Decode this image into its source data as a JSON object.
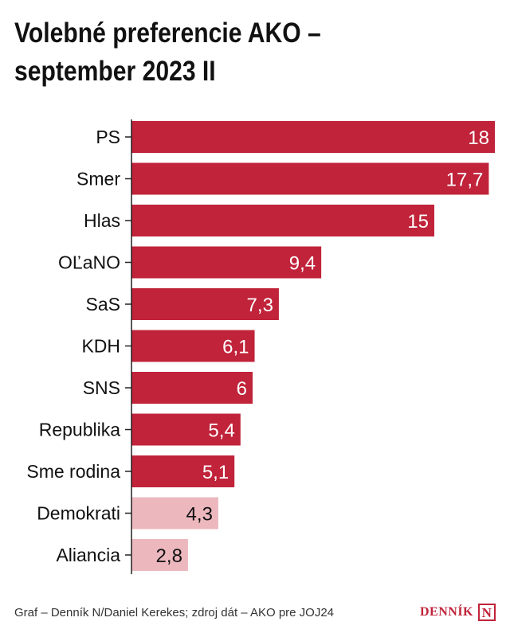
{
  "title_line1": "Volebné preferencie AKO –",
  "title_line2": "september 2023 II",
  "source": "Graf – Denník N/Daniel Kerekes; zdroj dát – AKO pre JOJ24",
  "logo": {
    "text": "DENNÍK",
    "mark": "N"
  },
  "colors": {
    "primary": "#c0233a",
    "light": "#ecb8be",
    "axis": "#222222"
  },
  "chart_data": {
    "type": "bar",
    "orientation": "horizontal",
    "categories": [
      "PS",
      "Smer",
      "Hlas",
      "OĽaNO",
      "SaS",
      "KDH",
      "SNS",
      "Republika",
      "Sme rodina",
      "Demokrati",
      "Aliancia"
    ],
    "values": [
      18,
      17.7,
      15,
      9.4,
      7.3,
      6.1,
      6,
      5.4,
      5.1,
      4.3,
      2.8
    ],
    "labels": [
      "18",
      "17,7",
      "15",
      "9,4",
      "7,3",
      "6,1",
      "6",
      "5,4",
      "5,1",
      "4,3",
      "2,8"
    ],
    "highlight": [
      true,
      true,
      true,
      true,
      true,
      true,
      true,
      true,
      true,
      false,
      false
    ],
    "xlim": [
      0,
      18
    ],
    "grid": false,
    "legend": "none"
  }
}
